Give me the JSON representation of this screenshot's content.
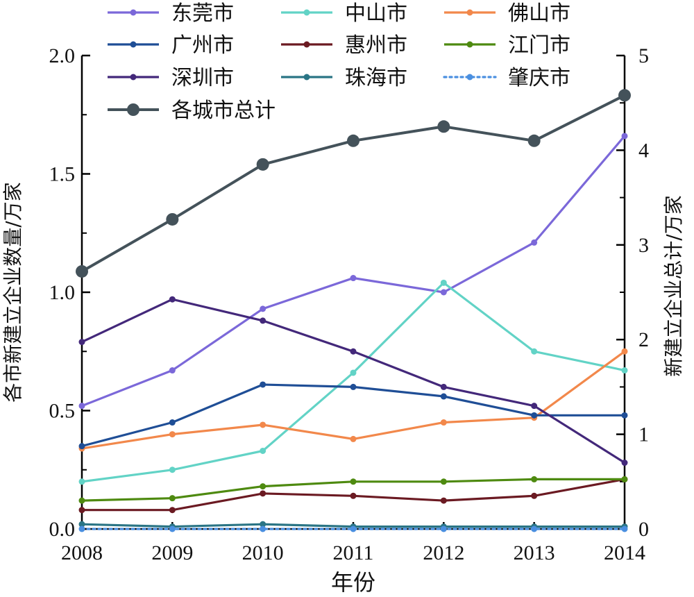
{
  "chart_data": {
    "type": "line",
    "categories": [
      "2008",
      "2009",
      "2010",
      "2011",
      "2012",
      "2013",
      "2014"
    ],
    "xlabel": "年份",
    "ylabel_left": "各市新建立企业数量/万家",
    "ylabel_right": "新建立企业总计/万家",
    "ylim_left": [
      0,
      2.0
    ],
    "ylim_right": [
      0,
      5
    ],
    "yticks_left": [
      "0.0",
      "0.5",
      "1.0",
      "1.5",
      "2.0"
    ],
    "yticks_right": [
      "0",
      "1",
      "2",
      "3",
      "4",
      "5"
    ],
    "grid": false,
    "legend_position": "top",
    "series": [
      {
        "name": "东莞市",
        "axis": "left",
        "color": "#7b68d9",
        "style": "solid",
        "values": [
          0.52,
          0.67,
          0.93,
          1.06,
          1.0,
          1.21,
          1.66
        ]
      },
      {
        "name": "中山市",
        "axis": "left",
        "color": "#62d3c6",
        "style": "solid",
        "values": [
          0.2,
          0.25,
          0.33,
          0.66,
          1.04,
          0.75,
          0.67
        ]
      },
      {
        "name": "佛山市",
        "axis": "left",
        "color": "#f2884b",
        "style": "solid",
        "values": [
          0.34,
          0.4,
          0.44,
          0.38,
          0.45,
          0.47,
          0.75
        ]
      },
      {
        "name": "广州市",
        "axis": "left",
        "color": "#1f4e96",
        "style": "solid",
        "values": [
          0.35,
          0.45,
          0.61,
          0.6,
          0.56,
          0.48,
          0.48
        ]
      },
      {
        "name": "惠州市",
        "axis": "left",
        "color": "#6b1a22",
        "style": "solid",
        "values": [
          0.08,
          0.08,
          0.15,
          0.14,
          0.12,
          0.14,
          0.21
        ]
      },
      {
        "name": "江门市",
        "axis": "left",
        "color": "#4e8a10",
        "style": "solid",
        "values": [
          0.12,
          0.13,
          0.18,
          0.2,
          0.2,
          0.21,
          0.21
        ]
      },
      {
        "name": "深圳市",
        "axis": "left",
        "color": "#43287a",
        "style": "solid",
        "values": [
          0.79,
          0.97,
          0.88,
          0.75,
          0.6,
          0.52,
          0.28
        ]
      },
      {
        "name": "珠海市",
        "axis": "left",
        "color": "#2a7585",
        "style": "solid",
        "values": [
          0.02,
          0.01,
          0.02,
          0.01,
          0.01,
          0.01,
          0.01
        ]
      },
      {
        "name": "肇庆市",
        "axis": "left",
        "color": "#4a8fe0",
        "style": "dotted",
        "values": [
          0.0,
          0.0,
          0.0,
          0.0,
          0.0,
          0.0,
          0.0
        ]
      },
      {
        "name": "各城市总计",
        "axis": "right",
        "color": "#44525a",
        "style": "solid",
        "big_marker": true,
        "values": [
          2.72,
          3.27,
          3.85,
          4.1,
          4.25,
          4.1,
          4.58
        ]
      }
    ]
  }
}
